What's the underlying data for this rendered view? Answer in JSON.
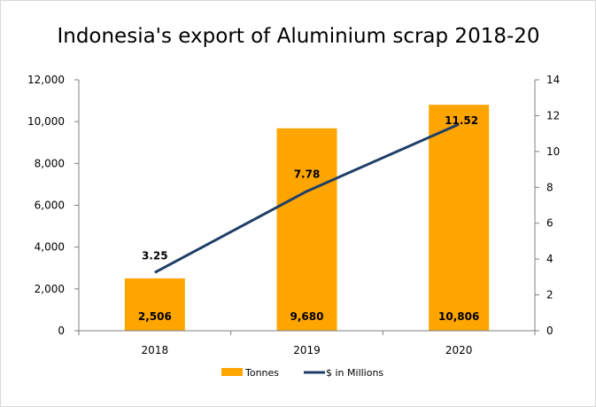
{
  "chart_data": {
    "type": "bar",
    "title": "Indonesia's export of Aluminium scrap 2018-20",
    "categories": [
      "2018",
      "2019",
      "2020"
    ],
    "series": [
      {
        "name": "Tonnes",
        "type": "bar",
        "axis": "left",
        "color": "#FFA500",
        "values": [
          2506,
          9680,
          10806
        ],
        "labels": [
          "2,506",
          "9,680",
          "10,806"
        ]
      },
      {
        "name": "$ in Millions",
        "type": "line",
        "axis": "right",
        "color": "#1F3F68",
        "values": [
          3.25,
          7.78,
          11.52
        ],
        "labels": [
          "3.25",
          "7.78",
          "11.52"
        ]
      }
    ],
    "y_left": {
      "min": 0,
      "max": 12000,
      "ticks": [
        0,
        2000,
        4000,
        6000,
        8000,
        10000,
        12000
      ],
      "tick_labels": [
        "0",
        "2,000",
        "4,000",
        "6,000",
        "8,000",
        "10,000",
        "12,000"
      ]
    },
    "y_right": {
      "min": 0,
      "max": 14,
      "ticks": [
        0,
        2,
        4,
        6,
        8,
        10,
        12,
        14
      ],
      "tick_labels": [
        "0",
        "2",
        "4",
        "6",
        "8",
        "10",
        "12",
        "14"
      ]
    },
    "grid": false,
    "legend_position": "bottom"
  }
}
